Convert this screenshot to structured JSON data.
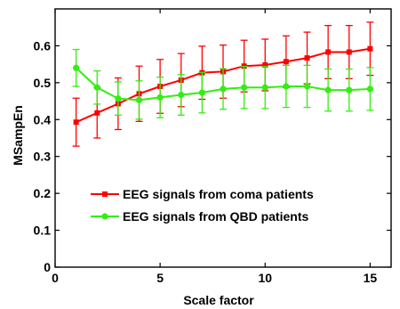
{
  "chart_data": {
    "type": "line",
    "title": "",
    "xlabel": "Scale factor",
    "ylabel": "MSampEn",
    "xlim": [
      0,
      16
    ],
    "ylim": [
      0,
      0.7
    ],
    "xticks": [
      "0",
      "5",
      "10",
      "15"
    ],
    "yticks": [
      "0",
      "0.1",
      "0.2",
      "0.3",
      "0.4",
      "0.5",
      "0.6"
    ],
    "grid": false,
    "legend_position": "center-right",
    "x": [
      1,
      2,
      3,
      4,
      5,
      6,
      7,
      8,
      9,
      10,
      11,
      12,
      13,
      14,
      15
    ],
    "series": [
      {
        "name": "EEG signals from coma patients",
        "color": "#ff0000",
        "marker": "square",
        "values": [
          0.393,
          0.418,
          0.443,
          0.47,
          0.49,
          0.507,
          0.527,
          0.53,
          0.545,
          0.548,
          0.557,
          0.567,
          0.583,
          0.583,
          0.592
        ],
        "errors": [
          0.065,
          0.068,
          0.07,
          0.075,
          0.073,
          0.072,
          0.072,
          0.072,
          0.07,
          0.07,
          0.07,
          0.07,
          0.072,
          0.072,
          0.072
        ]
      },
      {
        "name": "EEG signals from QBD patients",
        "color": "#33ee11",
        "marker": "circle",
        "values": [
          0.54,
          0.487,
          0.457,
          0.453,
          0.46,
          0.467,
          0.473,
          0.483,
          0.487,
          0.487,
          0.49,
          0.49,
          0.48,
          0.48,
          0.483
        ],
        "errors": [
          0.05,
          0.045,
          0.045,
          0.052,
          0.055,
          0.055,
          0.055,
          0.055,
          0.057,
          0.057,
          0.057,
          0.057,
          0.057,
          0.057,
          0.058
        ]
      }
    ]
  }
}
